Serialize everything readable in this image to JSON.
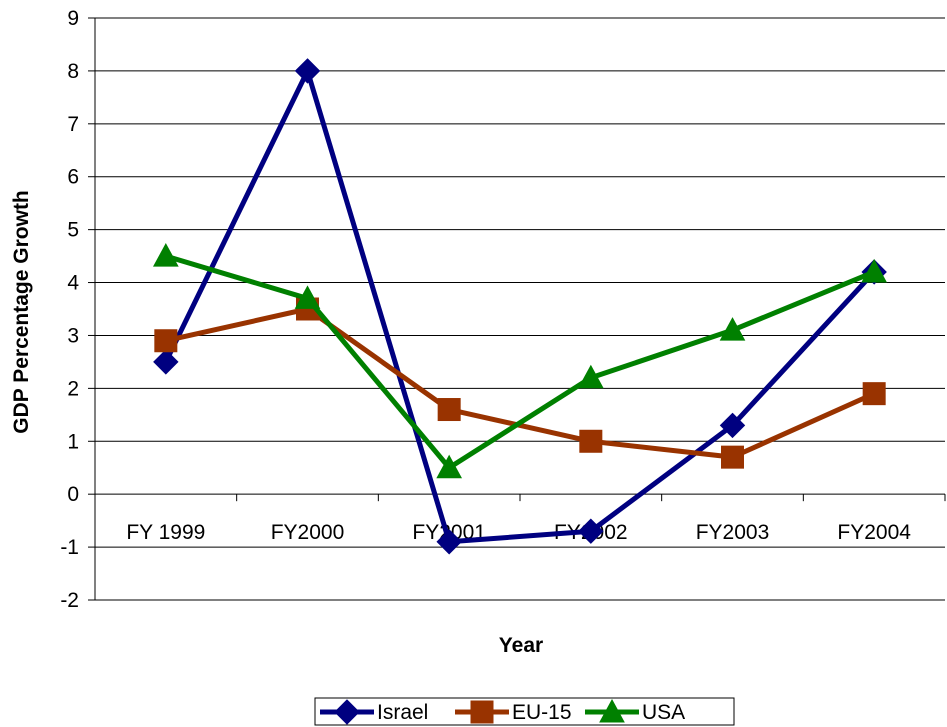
{
  "chart_data": {
    "type": "line",
    "title": "",
    "xlabel": "Year",
    "ylabel": "GDP Percentage Growth",
    "categories": [
      "FY 1999",
      "FY2000",
      "FY2001",
      "FY2002",
      "FY2003",
      "FY2004"
    ],
    "ylim": [
      -2,
      9
    ],
    "yticks": [
      -2,
      -1,
      0,
      1,
      2,
      3,
      4,
      5,
      6,
      7,
      8,
      9
    ],
    "grid": "horizontal",
    "legend_position": "bottom",
    "series": [
      {
        "name": "Israel",
        "marker": "diamond",
        "color": "#000080",
        "values": [
          2.5,
          8.0,
          -0.9,
          -0.7,
          1.3,
          4.2
        ]
      },
      {
        "name": "EU-15",
        "marker": "square",
        "color": "#993300",
        "values": [
          2.9,
          3.5,
          1.6,
          1.0,
          0.7,
          1.9
        ]
      },
      {
        "name": "USA",
        "marker": "triangle",
        "color": "#008000",
        "values": [
          4.5,
          3.7,
          0.5,
          2.2,
          3.1,
          4.2
        ]
      }
    ]
  }
}
